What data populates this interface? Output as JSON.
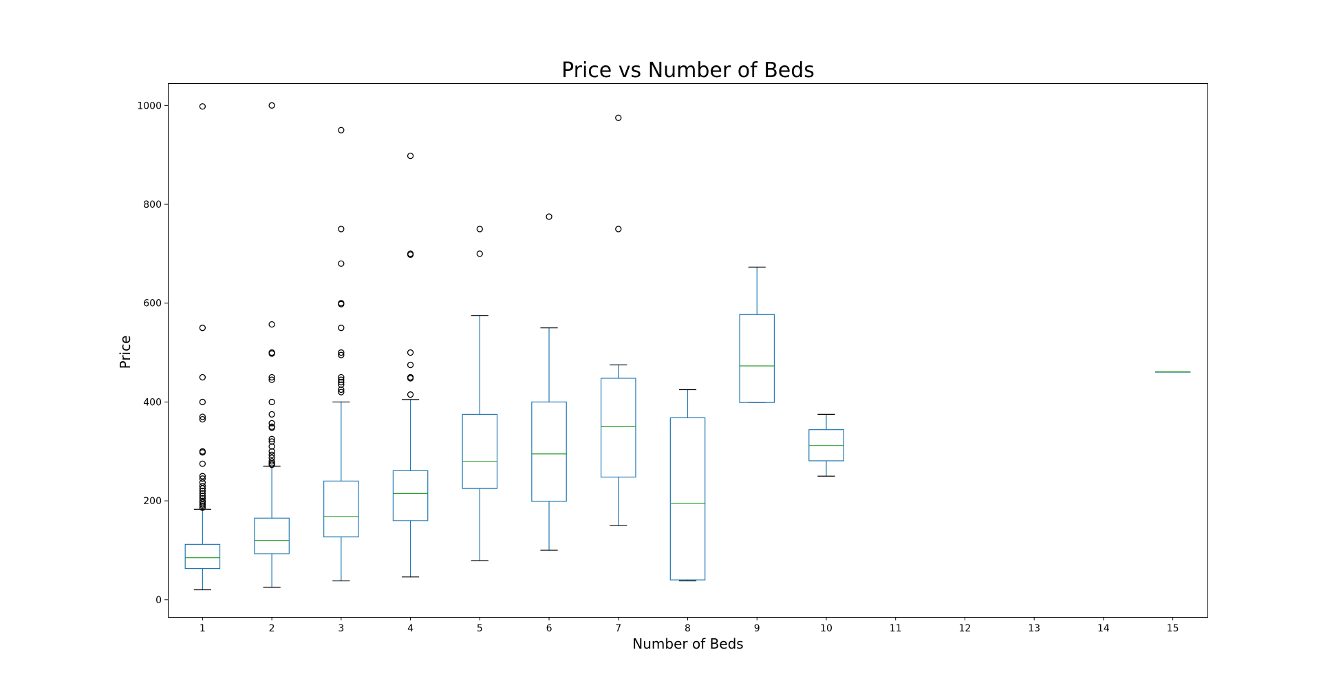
{
  "chart_data": {
    "type": "box",
    "title": "Price vs Number of Beds",
    "xlabel": "Number of Beds",
    "ylabel": "Price",
    "ylim": [
      -35,
      1045
    ],
    "yticks": [
      0,
      200,
      400,
      600,
      800,
      1000
    ],
    "categories": [
      "1",
      "2",
      "3",
      "4",
      "5",
      "6",
      "7",
      "8",
      "9",
      "10",
      "11",
      "12",
      "13",
      "14",
      "15"
    ],
    "grid": false,
    "legend": "none",
    "colors": {
      "box": "#1f77b4",
      "median": "#2ca02c",
      "cap": "#000000",
      "flier_edge": "#000000",
      "frame": "#000000"
    },
    "boxes": [
      {
        "category": "1",
        "whislo": 20,
        "q1": 63,
        "med": 85,
        "q3": 112,
        "whishi": 183,
        "fliers": [
          186,
          190,
          193,
          197,
          200,
          205,
          210,
          215,
          220,
          225,
          230,
          237,
          245,
          250,
          275,
          298,
          300,
          365,
          370,
          400,
          450,
          550,
          998
        ]
      },
      {
        "category": "2",
        "whislo": 25,
        "q1": 93,
        "med": 120,
        "q3": 165,
        "whishi": 270,
        "fliers": [
          273,
          276,
          280,
          287,
          293,
          300,
          310,
          320,
          325,
          348,
          350,
          357,
          375,
          400,
          445,
          450,
          498,
          500,
          557,
          1000
        ]
      },
      {
        "category": "3",
        "whislo": 38,
        "q1": 127,
        "med": 168,
        "q3": 240,
        "whishi": 400,
        "fliers": [
          420,
          425,
          435,
          440,
          445,
          450,
          495,
          500,
          550,
          598,
          600,
          680,
          750,
          950
        ]
      },
      {
        "category": "4",
        "whislo": 46,
        "q1": 160,
        "med": 215,
        "q3": 261,
        "whishi": 405,
        "fliers": [
          415,
          448,
          450,
          475,
          500,
          698,
          700,
          898
        ]
      },
      {
        "category": "5",
        "whislo": 79,
        "q1": 225,
        "med": 280,
        "q3": 375,
        "whishi": 575,
        "fliers": [
          700,
          750
        ]
      },
      {
        "category": "6",
        "whislo": 100,
        "q1": 199,
        "med": 295,
        "q3": 400,
        "whishi": 550,
        "fliers": [
          775
        ]
      },
      {
        "category": "7",
        "whislo": 150,
        "q1": 248,
        "med": 350,
        "q3": 448,
        "whishi": 475,
        "fliers": [
          750,
          975
        ]
      },
      {
        "category": "8",
        "whislo": 38,
        "q1": 40,
        "med": 195,
        "q3": 368,
        "whishi": 425,
        "fliers": []
      },
      {
        "category": "9",
        "whislo": 399,
        "q1": 399,
        "med": 473,
        "q3": 577,
        "whishi": 673,
        "fliers": []
      },
      {
        "category": "10",
        "whislo": 250,
        "q1": 281,
        "med": 312,
        "q3": 344,
        "whishi": 375,
        "fliers": []
      },
      {
        "category": "15",
        "whislo": 461,
        "q1": 461,
        "med": 461,
        "q3": 461,
        "whishi": 461,
        "fliers": []
      }
    ]
  }
}
